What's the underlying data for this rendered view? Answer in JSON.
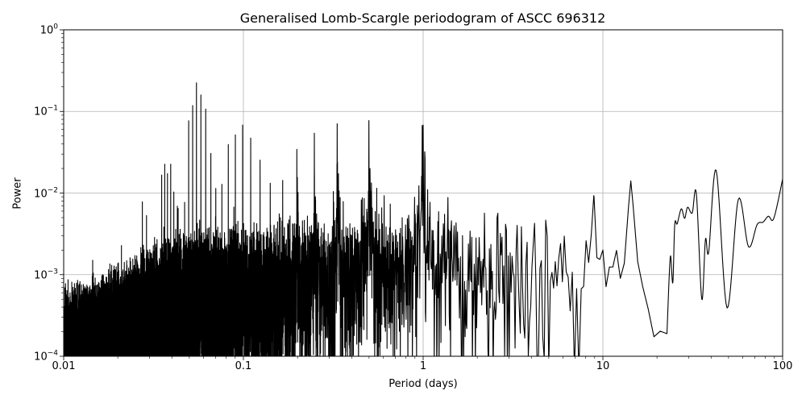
{
  "chart_data": {
    "type": "line",
    "title": "Generalised Lomb-Scargle periodogram of ASCC 696312",
    "xlabel": "Period (days)",
    "ylabel": "Power",
    "xscale": "log",
    "yscale": "log",
    "xlim": [
      0.01,
      100
    ],
    "ylim": [
      0.0001,
      1
    ],
    "grid": true,
    "line_color": "#000000",
    "grid_color": "#b0b0b0",
    "x_ticks": [
      "0.01",
      "0.1",
      "1",
      "10",
      "100"
    ],
    "y_ticks": [
      {
        "base": "10",
        "exp": "0"
      },
      {
        "base": "10",
        "exp": "−1"
      },
      {
        "base": "10",
        "exp": "−2"
      },
      {
        "base": "10",
        "exp": "−3"
      },
      {
        "base": "10",
        "exp": "−4"
      }
    ],
    "peaks": [
      [
        0.0274,
        0.0078
      ],
      [
        0.0289,
        0.0053
      ],
      [
        0.0351,
        0.0166
      ],
      [
        0.0365,
        0.0226
      ],
      [
        0.0378,
        0.0173
      ],
      [
        0.0394,
        0.0226
      ],
      [
        0.041,
        0.0103
      ],
      [
        0.0429,
        0.0069
      ],
      [
        0.0471,
        0.0077
      ],
      [
        0.0496,
        0.077
      ],
      [
        0.0522,
        0.118
      ],
      [
        0.0548,
        0.224
      ],
      [
        0.058,
        0.159
      ],
      [
        0.0617,
        0.107
      ],
      [
        0.0659,
        0.0306
      ],
      [
        0.0702,
        0.0114
      ],
      [
        0.0759,
        0.0128
      ],
      [
        0.0824,
        0.0393
      ],
      [
        0.0902,
        0.0516
      ],
      [
        0.099,
        0.068
      ],
      [
        0.1098,
        0.0471
      ],
      [
        0.1238,
        0.0253
      ],
      [
        0.141,
        0.0132
      ],
      [
        0.1654,
        0.0143
      ],
      [
        0.1983,
        0.0343
      ],
      [
        0.2481,
        0.054
      ],
      [
        0.3324,
        0.0706
      ],
      [
        0.4991,
        0.0773
      ],
      [
        1.0,
        0.068
      ],
      [
        8.9,
        0.0093
      ],
      [
        14.3,
        0.0141
      ],
      [
        0.0145,
        0.0015
      ],
      [
        0.0185,
        0.0013
      ],
      [
        0.0225,
        0.0013
      ],
      [
        0.0255,
        0.0017
      ]
    ],
    "broad_humps": [
      [
        0.2,
        0.002
      ],
      [
        0.25,
        0.003
      ],
      [
        0.333,
        0.006
      ],
      [
        0.5,
        0.006
      ],
      [
        1.0,
        0.007
      ]
    ],
    "noise_envelope": [
      [
        0.01,
        0.00028
      ],
      [
        0.02,
        0.0006
      ],
      [
        0.03,
        0.0011
      ],
      [
        0.05,
        0.002
      ],
      [
        0.1,
        0.0026
      ],
      [
        0.3,
        0.003
      ],
      [
        1.0,
        0.0042
      ],
      [
        3.0,
        0.0042
      ],
      [
        10.0,
        0.0032
      ],
      [
        23.0,
        0.0012
      ]
    ],
    "tail_curve": [
      [
        23.3,
        0.0008
      ],
      [
        23.8,
        0.0017
      ],
      [
        24.5,
        0.0008
      ],
      [
        25.1,
        0.0041
      ],
      [
        25.9,
        0.0042
      ],
      [
        27.3,
        0.0064
      ],
      [
        28.5,
        0.0049
      ],
      [
        29.6,
        0.0067
      ],
      [
        31.4,
        0.0057
      ],
      [
        33.1,
        0.0099
      ],
      [
        35.5,
        0.0005
      ],
      [
        37.2,
        0.0027
      ],
      [
        38.8,
        0.0019
      ],
      [
        42.7,
        0.019
      ],
      [
        49.1,
        0.00039
      ],
      [
        56.7,
        0.0084
      ],
      [
        64.6,
        0.0022
      ],
      [
        72.1,
        0.0041
      ],
      [
        77.8,
        0.0044
      ],
      [
        83.3,
        0.0052
      ],
      [
        89.3,
        0.0049
      ],
      [
        100,
        0.0148
      ]
    ]
  }
}
